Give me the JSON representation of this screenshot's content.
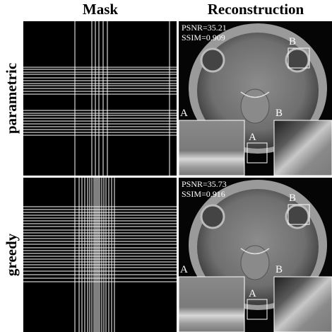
{
  "header": {
    "columns": [
      "Mask",
      "Reconstruction"
    ]
  },
  "rows": [
    {
      "label": "parametric",
      "psnr": "PSNR=35.21",
      "ssim": "SSIM=0.909",
      "insets": [
        "B",
        "A",
        "A",
        "B"
      ]
    },
    {
      "label": "greedy",
      "psnr": "PSNR=35.73",
      "ssim": "SSIM=0.916",
      "insets": [
        "B",
        "A",
        "A",
        "B"
      ]
    }
  ]
}
